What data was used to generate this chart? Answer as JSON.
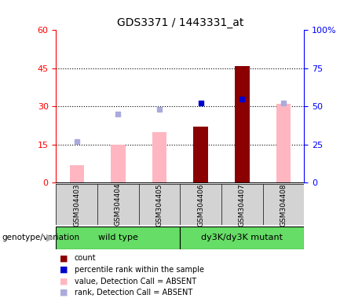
{
  "title": "GDS3371 / 1443331_at",
  "samples": [
    "GSM304403",
    "GSM304404",
    "GSM304405",
    "GSM304406",
    "GSM304407",
    "GSM304408"
  ],
  "count_values": [
    null,
    null,
    null,
    22,
    46,
    null
  ],
  "count_color": "#8B0000",
  "rank_values_pct": [
    null,
    null,
    null,
    52,
    55,
    null
  ],
  "rank_color": "#0000CD",
  "pink_bar_values": [
    7,
    15,
    20,
    null,
    null,
    null
  ],
  "pink_bar_values_right": [
    null,
    null,
    null,
    null,
    null,
    31
  ],
  "pink_bar_color": "#FFB6C1",
  "blue_sq_values_pct": [
    27,
    45,
    48,
    null,
    null,
    52
  ],
  "blue_sq_color": "#AAAADD",
  "ylim_left": [
    0,
    60
  ],
  "ylim_right": [
    0,
    100
  ],
  "yticks_left": [
    0,
    15,
    30,
    45,
    60
  ],
  "yticks_right": [
    0,
    25,
    50,
    75,
    100
  ],
  "yticklabels_left": [
    "0",
    "15",
    "30",
    "45",
    "60"
  ],
  "yticklabels_right": [
    "0",
    "25",
    "50",
    "75",
    "100%"
  ],
  "group_label_1": "wild type",
  "group_label_2": "dy3K/dy3K mutant",
  "bg_color": "#D3D3D3",
  "green_color": "#66DD66",
  "xlabel_label": "genotype/variation",
  "legend": [
    {
      "label": "count",
      "color": "#8B0000"
    },
    {
      "label": "percentile rank within the sample",
      "color": "#0000CD"
    },
    {
      "label": "value, Detection Call = ABSENT",
      "color": "#FFB6C1"
    },
    {
      "label": "rank, Detection Call = ABSENT",
      "color": "#AAAADD"
    }
  ]
}
